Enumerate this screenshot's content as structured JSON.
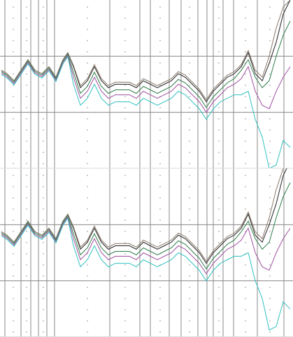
{
  "chart_data": [
    {
      "type": "line",
      "xlim": [
        0,
        419
      ],
      "ylim": [
        0,
        240
      ],
      "yticks": [
        80,
        160
      ],
      "xticks": [
        7,
        30,
        44,
        55,
        67,
        78,
        157,
        200,
        215,
        242,
        259,
        283,
        296,
        305,
        319,
        334,
        368,
        406
      ],
      "grid": true,
      "x": [
        2,
        10,
        20,
        30,
        40,
        50,
        60,
        70,
        80,
        90,
        97,
        105,
        115,
        125,
        135,
        145,
        155,
        165,
        175,
        185,
        195,
        205,
        215,
        225,
        235,
        245,
        255,
        265,
        275,
        285,
        295,
        305,
        315,
        325,
        335,
        345,
        355,
        365,
        375,
        385,
        395,
        405,
        415
      ],
      "series": [
        {
          "color": "#222222",
          "values": [
            140,
            135,
            125,
            140,
            155,
            140,
            135,
            145,
            130,
            155,
            165,
            145,
            115,
            125,
            145,
            125,
            115,
            120,
            120,
            120,
            115,
            125,
            120,
            115,
            120,
            125,
            135,
            130,
            120,
            110,
            95,
            110,
            120,
            130,
            135,
            145,
            165,
            135,
            125,
            150,
            180,
            220,
            240
          ]
        },
        {
          "color": "#8a7a6a",
          "values": [
            140,
            135,
            125,
            140,
            155,
            140,
            135,
            145,
            130,
            155,
            165,
            147,
            118,
            128,
            148,
            128,
            118,
            123,
            123,
            123,
            118,
            128,
            123,
            118,
            123,
            128,
            138,
            133,
            123,
            113,
            98,
            113,
            123,
            133,
            138,
            148,
            168,
            140,
            130,
            160,
            200,
            230,
            240
          ]
        },
        {
          "color": "#2e7d4a",
          "values": [
            138,
            133,
            123,
            138,
            153,
            138,
            133,
            143,
            128,
            153,
            163,
            137,
            107,
            117,
            137,
            117,
            107,
            112,
            112,
            112,
            107,
            117,
            112,
            107,
            112,
            117,
            127,
            122,
            112,
            102,
            87,
            102,
            112,
            122,
            128,
            140,
            155,
            130,
            115,
            125,
            160,
            190,
            210
          ]
        },
        {
          "color": "#a050a0",
          "values": [
            136,
            131,
            121,
            136,
            151,
            136,
            131,
            141,
            126,
            151,
            161,
            130,
            100,
            110,
            130,
            110,
            100,
            105,
            105,
            105,
            100,
            110,
            105,
            100,
            105,
            110,
            120,
            115,
            105,
            95,
            80,
            95,
            105,
            115,
            120,
            128,
            145,
            110,
            90,
            85,
            110,
            130,
            145
          ]
        },
        {
          "color": "#30c0c0",
          "values": [
            134,
            129,
            119,
            134,
            149,
            134,
            129,
            139,
            124,
            149,
            159,
            120,
            90,
            100,
            120,
            100,
            90,
            95,
            95,
            95,
            90,
            100,
            95,
            90,
            95,
            100,
            110,
            105,
            95,
            85,
            70,
            85,
            95,
            100,
            105,
            105,
            110,
            70,
            45,
            0,
            5,
            40,
            30
          ]
        }
      ]
    },
    {
      "type": "line",
      "xlim": [
        0,
        419
      ],
      "ylim": [
        -10,
        230
      ],
      "yticks": [
        70,
        150
      ],
      "xticks": [
        7,
        30,
        44,
        55,
        67,
        78,
        157,
        200,
        215,
        242,
        259,
        283,
        296,
        305,
        319,
        334,
        368,
        406
      ],
      "grid": true,
      "x": [
        2,
        10,
        20,
        30,
        40,
        50,
        60,
        70,
        80,
        90,
        97,
        105,
        115,
        125,
        135,
        145,
        155,
        165,
        175,
        185,
        195,
        205,
        215,
        225,
        235,
        245,
        255,
        265,
        275,
        285,
        295,
        305,
        315,
        325,
        335,
        345,
        355,
        365,
        375,
        385,
        395,
        405,
        415
      ],
      "series": [
        {
          "color": "#222222",
          "values": [
            140,
            135,
            125,
            140,
            155,
            140,
            135,
            145,
            130,
            155,
            165,
            145,
            115,
            125,
            145,
            125,
            115,
            120,
            120,
            120,
            115,
            125,
            120,
            115,
            120,
            125,
            135,
            130,
            120,
            110,
            95,
            110,
            120,
            130,
            135,
            145,
            165,
            135,
            125,
            150,
            180,
            220,
            240
          ]
        },
        {
          "color": "#8a7a6a",
          "values": [
            140,
            135,
            125,
            140,
            155,
            140,
            135,
            145,
            130,
            155,
            165,
            147,
            118,
            128,
            148,
            128,
            118,
            123,
            123,
            123,
            118,
            128,
            123,
            118,
            123,
            128,
            138,
            133,
            123,
            113,
            98,
            113,
            123,
            133,
            138,
            148,
            168,
            140,
            130,
            160,
            200,
            230,
            240
          ]
        },
        {
          "color": "#2e7d4a",
          "values": [
            138,
            133,
            123,
            138,
            153,
            138,
            133,
            143,
            128,
            153,
            163,
            137,
            107,
            117,
            137,
            117,
            107,
            112,
            112,
            112,
            107,
            117,
            112,
            107,
            112,
            117,
            127,
            122,
            112,
            102,
            87,
            102,
            112,
            122,
            128,
            140,
            155,
            130,
            115,
            125,
            160,
            190,
            210
          ]
        },
        {
          "color": "#a050a0",
          "values": [
            136,
            131,
            121,
            136,
            151,
            136,
            131,
            141,
            126,
            151,
            161,
            130,
            100,
            110,
            130,
            110,
            100,
            105,
            105,
            105,
            100,
            110,
            105,
            100,
            105,
            110,
            120,
            115,
            105,
            95,
            80,
            95,
            105,
            115,
            120,
            128,
            145,
            110,
            90,
            85,
            110,
            130,
            145
          ]
        },
        {
          "color": "#30c0c0",
          "values": [
            134,
            129,
            119,
            134,
            149,
            134,
            129,
            139,
            124,
            149,
            159,
            120,
            90,
            100,
            120,
            100,
            90,
            95,
            95,
            95,
            90,
            100,
            95,
            90,
            95,
            100,
            110,
            105,
            95,
            85,
            70,
            85,
            95,
            100,
            105,
            105,
            110,
            70,
            45,
            0,
            5,
            40,
            30
          ]
        }
      ]
    }
  ]
}
